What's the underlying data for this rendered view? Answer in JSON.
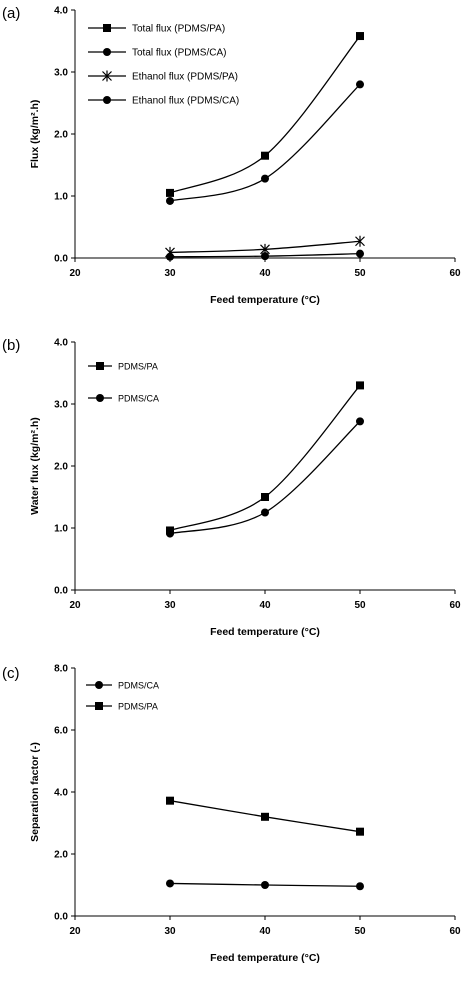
{
  "chart_data": [
    {
      "type": "line",
      "panel_label": "(a)",
      "xlabel": "Feed temperature (°C)",
      "ylabel": "Flux (kg/m².h)",
      "xlim": [
        20,
        60
      ],
      "ylim": [
        0.0,
        4.0
      ],
      "xticks": [
        "20",
        "30",
        "40",
        "50",
        "60"
      ],
      "yticks": [
        "0.0",
        "1.0",
        "2.0",
        "3.0",
        "4.0"
      ],
      "x": [
        30,
        40,
        50
      ],
      "legend_placement": "top-left",
      "series": [
        {
          "name": "Total flux (PDMS/PA)",
          "marker": "square",
          "values": [
            1.05,
            1.65,
            3.58
          ]
        },
        {
          "name": "Total flux (PDMS/CA)",
          "marker": "circle",
          "values": [
            0.92,
            1.28,
            2.8
          ]
        },
        {
          "name": "Ethanol flux (PDMS/PA)",
          "marker": "star",
          "values": [
            0.09,
            0.14,
            0.27
          ]
        },
        {
          "name": "Ethanol flux (PDMS/CA)",
          "marker": "circle",
          "values": [
            0.02,
            0.03,
            0.07
          ]
        }
      ]
    },
    {
      "type": "line",
      "panel_label": "(b)",
      "xlabel": "Feed temperature (°C)",
      "ylabel": "Water flux (kg/m².h)",
      "xlim": [
        20,
        60
      ],
      "ylim": [
        0.0,
        4.0
      ],
      "xticks": [
        "20",
        "30",
        "40",
        "50",
        "60"
      ],
      "yticks": [
        "0.0",
        "1.0",
        "2.0",
        "3.0",
        "4.0"
      ],
      "x": [
        30,
        40,
        50
      ],
      "legend_placement": "top-left",
      "series": [
        {
          "name": "PDMS/PA",
          "marker": "square",
          "values": [
            0.96,
            1.5,
            3.3
          ]
        },
        {
          "name": "PDMS/CA",
          "marker": "circle",
          "values": [
            0.91,
            1.25,
            2.72
          ]
        }
      ]
    },
    {
      "type": "line",
      "panel_label": "(c)",
      "xlabel": "Feed temperature (°C)",
      "ylabel": "Separation factor (-)",
      "xlim": [
        20,
        60
      ],
      "ylim": [
        0.0,
        8.0
      ],
      "xticks": [
        "20",
        "30",
        "40",
        "50",
        "60"
      ],
      "yticks": [
        "0.0",
        "2.0",
        "4.0",
        "6.0",
        "8.0"
      ],
      "x": [
        30,
        40,
        50
      ],
      "legend_placement": "top-left",
      "series": [
        {
          "name": "PDMS/CA",
          "marker": "circle",
          "values": [
            1.05,
            1.0,
            0.96
          ]
        },
        {
          "name": "PDMS/PA",
          "marker": "square",
          "values": [
            3.72,
            3.2,
            2.72
          ]
        }
      ]
    }
  ]
}
